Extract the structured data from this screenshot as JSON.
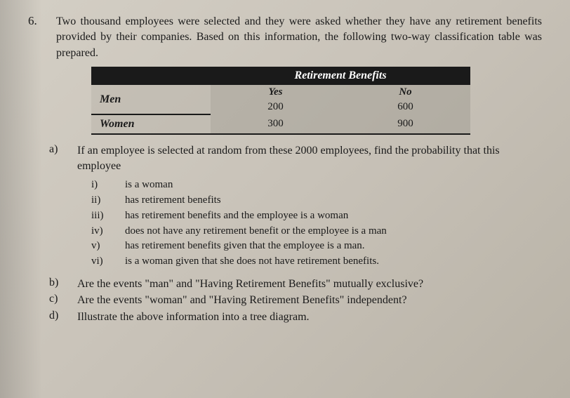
{
  "question": {
    "number": "6.",
    "text": "Two thousand employees were selected and they were asked whether they have any retirement benefits provided by their companies. Based on this information, the following two-way classification table was prepared."
  },
  "table": {
    "title": "Retirement Benefits",
    "col_headers": [
      "Yes",
      "No"
    ],
    "rows": [
      {
        "label": "Men",
        "values": [
          "200",
          "600"
        ]
      },
      {
        "label": "Women",
        "values": [
          "300",
          "900"
        ]
      }
    ],
    "colors": {
      "header_bg": "#1a1a1a",
      "header_fg": "#ffffff",
      "cell_bg": "rgba(160,155,145,0.5)",
      "border": "#1a1a1a"
    }
  },
  "part_a": {
    "label": "a)",
    "text": "If an employee is selected at random from these 2000 employees, find the probability that this employee",
    "items": [
      {
        "label": "i)",
        "text": "is a woman"
      },
      {
        "label": "ii)",
        "text": "has retirement benefits"
      },
      {
        "label": "iii)",
        "text": "has retirement benefits and the employee is a woman"
      },
      {
        "label": "iv)",
        "text": "does not have any retirement benefit or the employee is a man"
      },
      {
        "label": "v)",
        "text": "has retirement benefits given that the employee is a man."
      },
      {
        "label": "vi)",
        "text": "is a woman given that she does not have retirement benefits."
      }
    ]
  },
  "part_b": {
    "label": "b)",
    "text": "Are the events \"man\" and \"Having Retirement Benefits\" mutually exclusive?"
  },
  "part_c": {
    "label": "c)",
    "text": "Are the events \"woman\" and \"Having Retirement Benefits\" independent?"
  },
  "part_d": {
    "label": "d)",
    "text": "Illustrate the above information into a tree diagram."
  }
}
